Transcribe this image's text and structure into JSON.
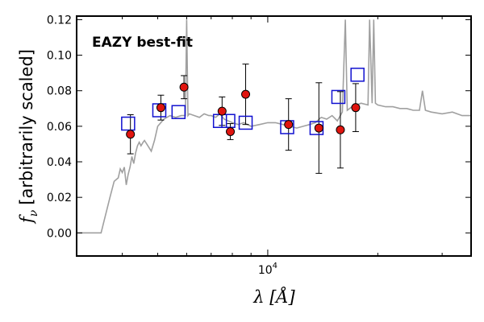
{
  "chart_data": {
    "type": "scatter",
    "title": "",
    "annotation": "EAZY best-fit",
    "annotation_color": "#ff0000",
    "xlabel": "λ [Å]",
    "ylabel_symbol": "f",
    "ylabel_subscript": "ν",
    "ylabel_text": "[arbitrarily scaled]",
    "x_scale": "log",
    "xlim": [
      3000,
      36000
    ],
    "ylim": [
      -0.013,
      0.122
    ],
    "x_ticks": [
      {
        "value": 10000,
        "base": "10",
        "exp": "4"
      }
    ],
    "x_minor_ticks": [
      4000,
      5000,
      6000,
      7000,
      8000,
      9000,
      20000,
      30000
    ],
    "y_ticks": [
      {
        "value": 0.0,
        "label": "0.00"
      },
      {
        "value": 0.02,
        "label": "0.02"
      },
      {
        "value": 0.04,
        "label": "0.04"
      },
      {
        "value": 0.06,
        "label": "0.06"
      },
      {
        "value": 0.08,
        "label": "0.08"
      },
      {
        "value": 0.1,
        "label": "0.10"
      },
      {
        "value": 0.12,
        "label": "0.12"
      }
    ],
    "grid": false,
    "colors": {
      "template": "#a0a0a0",
      "observed_fill": "#e0150f",
      "observed_edge": "#000000",
      "model_edge": "#1010d0",
      "errorbar": "#000000"
    },
    "series": [
      {
        "kind": "line",
        "role": "template",
        "x": [
          3000,
          3500,
          3700,
          3800,
          3900,
          3950,
          4000,
          4050,
          4100,
          4150,
          4200,
          4250,
          4300,
          4350,
          4400,
          4450,
          4500,
          4560,
          4600,
          4700,
          4800,
          4900,
          5000,
          5200,
          5400,
          5600,
          5800,
          5950,
          6000,
          6050,
          6100,
          6300,
          6500,
          6700,
          6900,
          7000,
          7200,
          7400,
          7600,
          7800,
          8000,
          8300,
          8600,
          9000,
          9500,
          10000,
          10500,
          11000,
          11500,
          12000,
          12500,
          13000,
          13500,
          14000,
          14500,
          15000,
          15500,
          16000,
          16300,
          16500,
          17000,
          18000,
          18800,
          19000,
          19300,
          19500,
          19700,
          20000,
          21000,
          22000,
          23000,
          24000,
          25000,
          26000,
          26500,
          27000,
          28000,
          30000,
          32000,
          34000,
          36000
        ],
        "y": [
          0.0,
          0.0,
          0.02,
          0.029,
          0.031,
          0.036,
          0.034,
          0.037,
          0.027,
          0.033,
          0.037,
          0.043,
          0.039,
          0.045,
          0.049,
          0.051,
          0.049,
          0.051,
          0.052,
          0.049,
          0.046,
          0.052,
          0.06,
          0.064,
          0.066,
          0.065,
          0.066,
          0.066,
          0.12,
          0.066,
          0.067,
          0.066,
          0.065,
          0.067,
          0.066,
          0.066,
          0.065,
          0.067,
          0.064,
          0.063,
          0.062,
          0.061,
          0.062,
          0.06,
          0.061,
          0.062,
          0.062,
          0.061,
          0.06,
          0.059,
          0.06,
          0.061,
          0.062,
          0.065,
          0.064,
          0.066,
          0.063,
          0.068,
          0.12,
          0.069,
          0.071,
          0.073,
          0.072,
          0.12,
          0.073,
          0.12,
          0.073,
          0.072,
          0.071,
          0.071,
          0.07,
          0.07,
          0.069,
          0.069,
          0.08,
          0.069,
          0.068,
          0.067,
          0.068,
          0.066,
          0.066
        ]
      },
      {
        "kind": "points",
        "role": "observed",
        "x": [
          4210,
          5100,
          5900,
          7500,
          7900,
          8700,
          11400,
          13800,
          15800,
          17400
        ],
        "y": [
          0.0555,
          0.0705,
          0.082,
          0.0685,
          0.057,
          0.078,
          0.061,
          0.059,
          0.058,
          0.0705
        ],
        "yerr": [
          0.011,
          0.007,
          0.0065,
          0.008,
          0.0045,
          0.017,
          0.0145,
          0.0255,
          0.0215,
          0.0135
        ]
      },
      {
        "kind": "points",
        "role": "model",
        "x": [
          4150,
          5050,
          5700,
          7400,
          7800,
          8700,
          11300,
          13600,
          15600,
          17600
        ],
        "y": [
          0.0615,
          0.069,
          0.068,
          0.063,
          0.063,
          0.062,
          0.0595,
          0.059,
          0.0765,
          0.089
        ]
      }
    ]
  }
}
